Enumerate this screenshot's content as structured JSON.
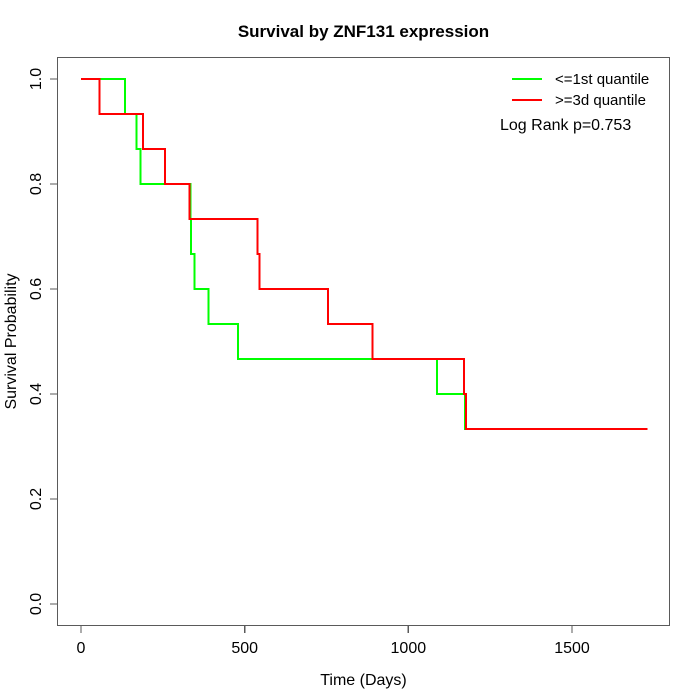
{
  "title": "Survival by ZNF131 expression",
  "axes": {
    "xlabel": "Time (Days)",
    "ylabel": "Survival Probability"
  },
  "legend": {
    "items": [
      {
        "label": "<=1st quantile",
        "color": "#00ff00"
      },
      {
        "label": ">=3d quantile",
        "color": "#ff0000"
      }
    ],
    "stat_note": "Log Rank p=0.753"
  },
  "chart_data": {
    "type": "line",
    "variant": "kaplan-meier-step",
    "title": "Survival by ZNF131 expression",
    "xlabel": "Time (Days)",
    "ylabel": "Survival Probability",
    "xlim": [
      -70,
      1800
    ],
    "ylim": [
      -0.04,
      1.04
    ],
    "xticks": [
      0,
      500,
      1000,
      1500
    ],
    "yticks": [
      0.0,
      0.2,
      0.4,
      0.6,
      0.8,
      1.0
    ],
    "grid": false,
    "legend_position": "top-right",
    "log_rank_p": 0.753,
    "group_size": 15,
    "series": [
      {
        "name": "<=1st quantile",
        "color": "#00ff00",
        "points": [
          [
            0,
            1.0
          ],
          [
            134,
            0.9333
          ],
          [
            170,
            0.8667
          ],
          [
            182,
            0.8
          ],
          [
            335,
            0.7333
          ],
          [
            336,
            0.6667
          ],
          [
            347,
            0.6
          ],
          [
            390,
            0.5333
          ],
          [
            480,
            0.4667
          ],
          [
            1087,
            0.4
          ],
          [
            1173,
            0.3333
          ],
          [
            1180,
            0.3333
          ]
        ]
      },
      {
        "name": ">=3d quantile",
        "color": "#ff0000",
        "points": [
          [
            0,
            1.0
          ],
          [
            56,
            0.9333
          ],
          [
            189,
            0.8667
          ],
          [
            257,
            0.8
          ],
          [
            331,
            0.7333
          ],
          [
            539,
            0.6667
          ],
          [
            545,
            0.6
          ],
          [
            755,
            0.5333
          ],
          [
            891,
            0.4667
          ],
          [
            1170,
            0.4
          ],
          [
            1176,
            0.3333
          ],
          [
            1730,
            0.3333
          ]
        ]
      }
    ]
  }
}
